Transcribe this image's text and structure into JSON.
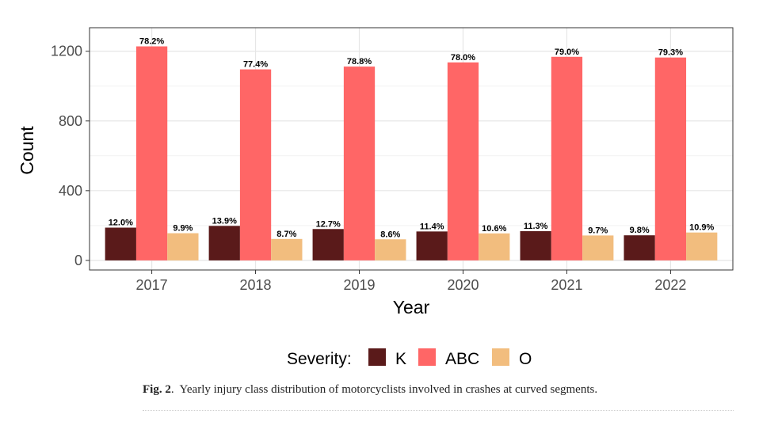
{
  "chart_data": {
    "type": "bar",
    "categories": [
      "2017",
      "2018",
      "2019",
      "2020",
      "2021",
      "2022"
    ],
    "series": [
      {
        "name": "K",
        "color": "#5a1a1a",
        "values": [
          188,
          198,
          180,
          166,
          168,
          144
        ],
        "labels": [
          "12.0%",
          "13.9%",
          "12.7%",
          "11.4%",
          "11.3%",
          "9.8%"
        ]
      },
      {
        "name": "ABC",
        "color": "#ff6666",
        "values": [
          1228,
          1096,
          1112,
          1136,
          1168,
          1164
        ],
        "labels": [
          "78.2%",
          "77.4%",
          "78.8%",
          "78.0%",
          "79.0%",
          "79.3%"
        ]
      },
      {
        "name": "O",
        "color": "#f2bd7e",
        "values": [
          156,
          123,
          121,
          155,
          143,
          160
        ],
        "labels": [
          "9.9%",
          "8.7%",
          "8.6%",
          "10.6%",
          "9.7%",
          "10.9%"
        ]
      }
    ],
    "xlabel": "Year",
    "ylabel": "Count",
    "yticks": [
      0,
      400,
      800,
      1200
    ],
    "ylim": [
      -55,
      1335
    ],
    "grid": true,
    "legend_title": "Severity:",
    "legend_position": "bottom"
  },
  "caption": {
    "label": "Fig. 2",
    "text": "Yearly injury class distribution of motorcyclists involved in crashes at curved segments."
  }
}
